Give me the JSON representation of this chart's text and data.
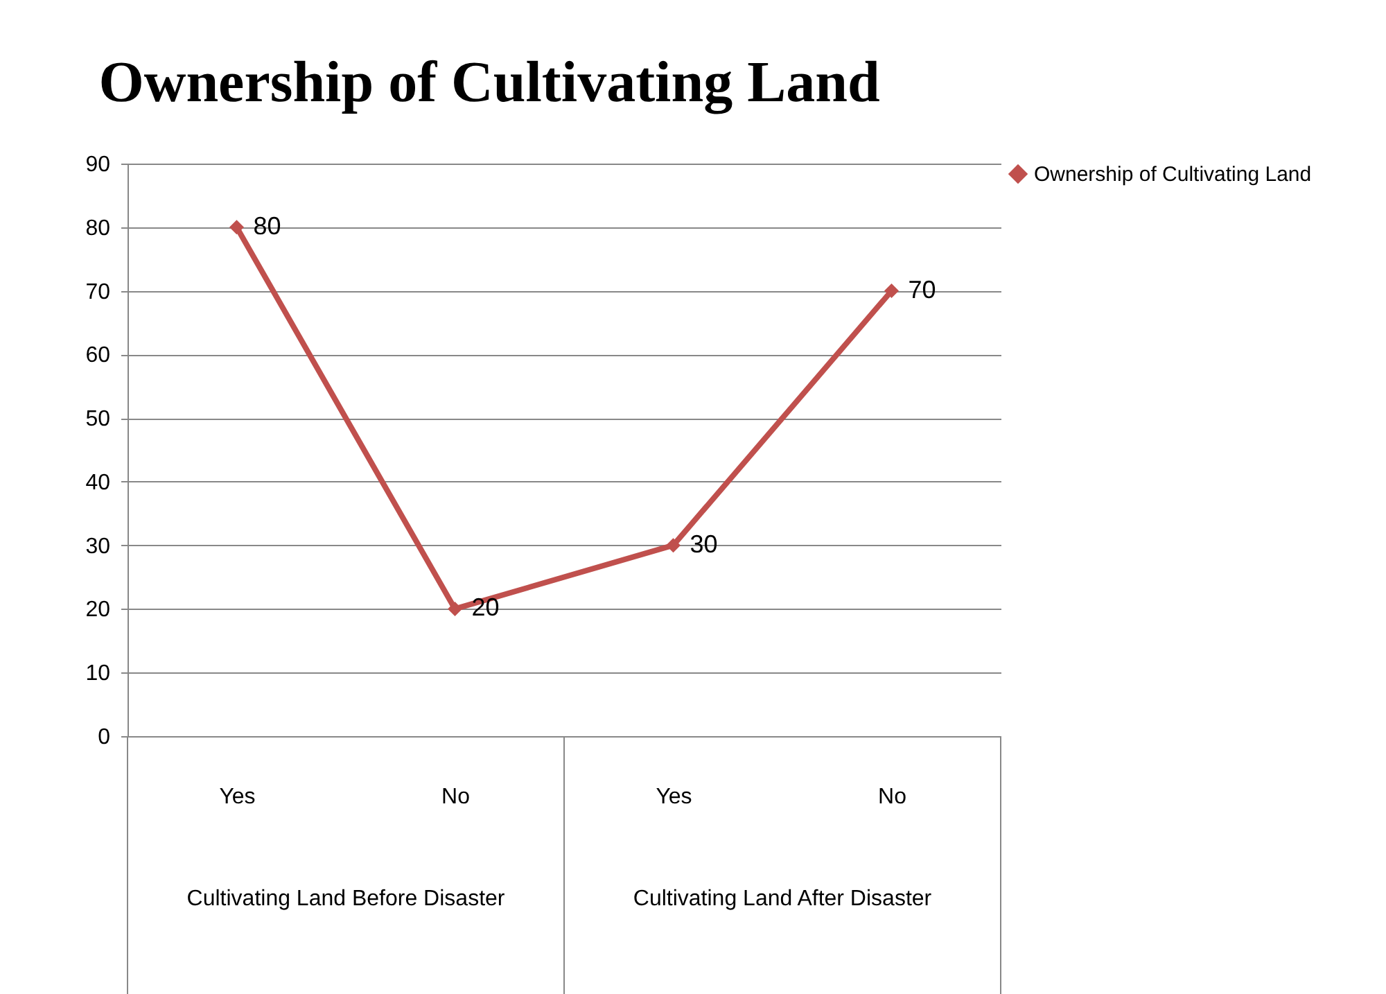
{
  "chart_data": {
    "type": "line",
    "title": "Ownership of Cultivating Land",
    "categories": [
      "Yes",
      "No",
      "Yes",
      "No"
    ],
    "series": [
      {
        "name": "Ownership of Cultivating Land",
        "color": "#c0504d",
        "values": [
          80,
          20,
          30,
          70
        ]
      }
    ],
    "annotations": [
      "Cultivating Land Before Disaster",
      "Cultivating Land After Disaster"
    ],
    "ylim": [
      0,
      90
    ],
    "yticks": [
      0,
      10,
      20,
      30,
      40,
      50,
      60,
      70,
      80,
      90
    ],
    "grid": "y",
    "legend": "right",
    "marker": "diamond",
    "line_style": "solid",
    "data_labels": true
  }
}
